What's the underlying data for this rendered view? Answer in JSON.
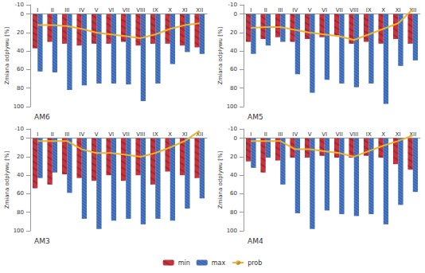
{
  "chart_data": [
    {
      "type": "bar",
      "title": "AM6",
      "y_label": "Zmiana odpływu [%]",
      "categories": [
        "I",
        "II",
        "III",
        "IV",
        "V",
        "VI",
        "VII",
        "VIII",
        "IX",
        "X",
        "XI",
        "XII"
      ],
      "series": [
        {
          "name": "min",
          "type": "bar",
          "color": "#c8323c",
          "values": [
            37,
            30,
            32,
            34,
            32,
            32,
            30,
            34,
            32,
            32,
            34,
            36
          ]
        },
        {
          "name": "max",
          "type": "bar",
          "color": "#2e5fb4",
          "values": [
            62,
            63,
            82,
            77,
            75,
            75,
            76,
            94,
            75,
            54,
            41,
            43
          ]
        },
        {
          "name": "prob",
          "type": "line",
          "color": "#f0b030",
          "values": [
            12,
            12,
            13,
            16,
            20,
            22,
            24,
            26,
            22,
            16,
            12,
            10
          ]
        }
      ],
      "ylim": [
        -10,
        100
      ],
      "yticks": [
        -10,
        0,
        20,
        40,
        60,
        80,
        100
      ],
      "legend": "bottom"
    },
    {
      "type": "bar",
      "title": "AM5",
      "y_label": "Zmiana odpływu [%]",
      "categories": [
        "I",
        "II",
        "III",
        "IV",
        "V",
        "VI",
        "VII",
        "VIII",
        "IX",
        "X",
        "XI",
        "XII"
      ],
      "series": [
        {
          "name": "min",
          "type": "bar",
          "color": "#c8323c",
          "values": [
            30,
            27,
            25,
            30,
            27,
            25,
            23,
            32,
            30,
            32,
            27,
            32
          ]
        },
        {
          "name": "max",
          "type": "bar",
          "color": "#2e5fb4",
          "values": [
            43,
            34,
            30,
            65,
            85,
            71,
            75,
            79,
            75,
            97,
            56,
            50
          ]
        },
        {
          "name": "prob",
          "type": "line",
          "color": "#f0b030",
          "values": [
            15,
            14,
            14,
            17,
            20,
            22,
            24,
            28,
            22,
            16,
            10,
            -5
          ]
        }
      ],
      "ylim": [
        -10,
        100
      ],
      "yticks": [
        -10,
        0,
        20,
        40,
        60,
        80,
        100
      ],
      "legend": "bottom"
    },
    {
      "type": "bar",
      "title": "AM3",
      "y_label": "Zmiana odpływu [%]",
      "categories": [
        "I",
        "II",
        "III",
        "IV",
        "V",
        "VI",
        "VII",
        "VIII",
        "IX",
        "X",
        "XI",
        "XII"
      ],
      "series": [
        {
          "name": "min",
          "type": "bar",
          "color": "#c8323c",
          "values": [
            54,
            50,
            39,
            43,
            46,
            40,
            46,
            40,
            50,
            36,
            40,
            43
          ]
        },
        {
          "name": "max",
          "type": "bar",
          "color": "#2e5fb4",
          "values": [
            43,
            37,
            59,
            87,
            98,
            89,
            87,
            93,
            87,
            89,
            76,
            65
          ]
        },
        {
          "name": "prob",
          "type": "line",
          "color": "#f0b030",
          "values": [
            3,
            3,
            3,
            12,
            16,
            16,
            18,
            20,
            16,
            10,
            3,
            -8
          ]
        }
      ],
      "ylim": [
        -10,
        100
      ],
      "yticks": [
        -10,
        0,
        20,
        40,
        60,
        80,
        100
      ],
      "legend": "bottom"
    },
    {
      "type": "bar",
      "title": "AM4",
      "y_label": "Zmiana odpływu [%]",
      "categories": [
        "I",
        "II",
        "III",
        "IV",
        "V",
        "VI",
        "VII",
        "VIII",
        "IX",
        "X",
        "XI",
        "XII"
      ],
      "series": [
        {
          "name": "min",
          "type": "bar",
          "color": "#c8323c",
          "values": [
            25,
            37,
            24,
            21,
            21,
            19,
            21,
            21,
            19,
            21,
            28,
            34
          ]
        },
        {
          "name": "max",
          "type": "bar",
          "color": "#2e5fb4",
          "values": [
            32,
            21,
            50,
            81,
            98,
            78,
            82,
            84,
            82,
            93,
            72,
            58
          ]
        },
        {
          "name": "prob",
          "type": "line",
          "color": "#f0b030",
          "values": [
            3,
            3,
            3,
            12,
            12,
            14,
            16,
            20,
            14,
            8,
            3,
            -3
          ]
        }
      ],
      "ylim": [
        -10,
        100
      ],
      "yticks": [
        -10,
        0,
        20,
        40,
        60,
        80,
        100
      ],
      "legend": "bottom"
    }
  ]
}
